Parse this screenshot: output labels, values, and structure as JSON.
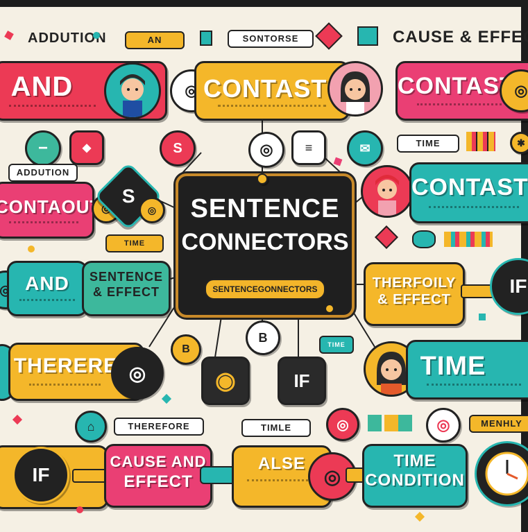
{
  "header": {
    "addition_label": "ADDUTION",
    "and_tag": "AN",
    "sontorse_tag": "SONTORSE",
    "cause_effect_title": "CAUSE & EFFECT"
  },
  "center": {
    "title_line1": "SENTENCE",
    "title_line2": "CONNECTORS",
    "subtitle": "SENTENCEGONNECTORS"
  },
  "row1": {
    "and_label": "AND",
    "contast_label": "CONTAST",
    "contast_right_label": "CONTAST"
  },
  "row2": {
    "s_icon_label": "S",
    "time_tag": "TIME",
    "addition_tag": "ADDUTION"
  },
  "row3": {
    "contaout_label": "CONTAOUT",
    "s_diamond_label": "S",
    "contast_label": "CONTAST",
    "time_small_tag": "TIME"
  },
  "row4": {
    "and_label": "AND",
    "sentence_effect_line1": "SENTENCE",
    "sentence_effect_line2": "& EFFECT",
    "therefly_line1": "THERFOILY",
    "therefly_line2": "& EFFECT",
    "if_label": "IF"
  },
  "row5": {
    "therefore_label": "THERERE",
    "b_label": "B",
    "b2_label": "B",
    "time_label": "TIME",
    "if_label": "IF",
    "small_tag": "TIME"
  },
  "row6": {
    "therefore_tag": "THEREFORE",
    "timle_tag": "TIMLE",
    "menhly_tag": "MENHLY"
  },
  "row7": {
    "if_label": "IF",
    "cause_line1": "CAUSE AND",
    "cause_line2": "EFFECT",
    "alse_label": "ALSE",
    "time_line1": "TIME",
    "time_line2": "CONDITION"
  },
  "colors": {
    "red": "#ec3a55",
    "yellow": "#f4b72a",
    "teal": "#27b6b0",
    "pink": "#ea3f74",
    "green": "#3db89c",
    "dark": "#222222",
    "bg": "#f5f0e4"
  }
}
